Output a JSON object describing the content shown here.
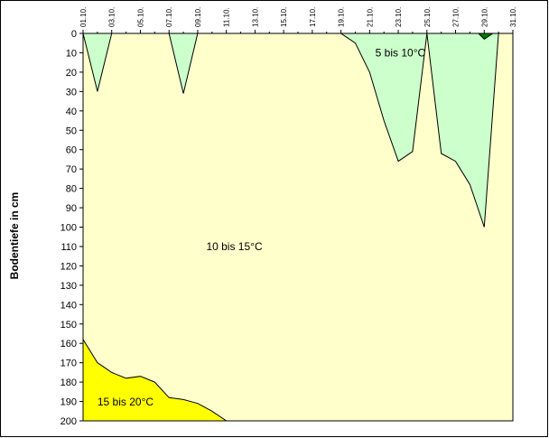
{
  "chart_data": {
    "type": "area",
    "title": "",
    "xlabel": "",
    "ylabel": "Bodentiefe in cm",
    "x_tick_labels": [
      "01.10.",
      "03.10.",
      "05.10.",
      "07.10.",
      "09.10.",
      "11.10.",
      "13.10.",
      "15.10.",
      "17.10.",
      "19.10.",
      "21.10.",
      "23.10.",
      "25.10.",
      "27.10.",
      "29.10.",
      "31.10."
    ],
    "xlim_day": [
      1,
      31
    ],
    "y_ticks": [
      0,
      10,
      20,
      30,
      40,
      50,
      60,
      70,
      80,
      90,
      100,
      110,
      120,
      130,
      140,
      150,
      160,
      170,
      180,
      190,
      200
    ],
    "ylim": [
      0,
      200
    ],
    "y_inverted": true,
    "grid": false,
    "colors": {
      "background_band": "#ffffcc",
      "cool_band": "#ccffcc",
      "cold_band": "#008000",
      "warm_band": "#ffff00",
      "outline": "#000000"
    },
    "series": [
      {
        "name": "5 bis 10°C",
        "fill": "cool_band",
        "regions": [
          [
            {
              "day": 1,
              "depth": 0
            },
            {
              "day": 2,
              "depth": 30
            },
            {
              "day": 3,
              "depth": 0
            }
          ],
          [
            {
              "day": 7,
              "depth": 0
            },
            {
              "day": 8,
              "depth": 31
            },
            {
              "day": 9,
              "depth": 0
            }
          ],
          [
            {
              "day": 19,
              "depth": 0
            },
            {
              "day": 20,
              "depth": 5
            },
            {
              "day": 21,
              "depth": 20
            },
            {
              "day": 22,
              "depth": 45
            },
            {
              "day": 23,
              "depth": 66
            },
            {
              "day": 24,
              "depth": 61
            },
            {
              "day": 25,
              "depth": 0
            }
          ],
          [
            {
              "day": 25,
              "depth": 0
            },
            {
              "day": 26,
              "depth": 62
            },
            {
              "day": 27,
              "depth": 66
            },
            {
              "day": 28,
              "depth": 78
            },
            {
              "day": 29,
              "depth": 100
            },
            {
              "day": 30,
              "depth": 0
            }
          ]
        ]
      },
      {
        "name": "",
        "fill": "cold_band",
        "regions": [
          [
            {
              "day": 28.6,
              "depth": 0
            },
            {
              "day": 29,
              "depth": 3
            },
            {
              "day": 29.6,
              "depth": 0
            }
          ]
        ]
      },
      {
        "name": "10 bis 15°C",
        "fill": "background_band",
        "regions": []
      },
      {
        "name": "15 bis 20°C",
        "fill": "warm_band",
        "regions": [
          [
            {
              "day": 1,
              "depth": 158
            },
            {
              "day": 2,
              "depth": 170
            },
            {
              "day": 3,
              "depth": 175
            },
            {
              "day": 4,
              "depth": 178
            },
            {
              "day": 5,
              "depth": 177
            },
            {
              "day": 6,
              "depth": 180
            },
            {
              "day": 7,
              "depth": 188
            },
            {
              "day": 8,
              "depth": 189
            },
            {
              "day": 9,
              "depth": 191
            },
            {
              "day": 10,
              "depth": 195
            },
            {
              "day": 11,
              "depth": 200
            },
            {
              "day": 1,
              "depth": 200
            }
          ]
        ]
      }
    ],
    "annotations": [
      {
        "text": "5 bis 10°C",
        "day": 21.4,
        "depth": 12
      },
      {
        "text": "10 bis 15°C",
        "day": 9.6,
        "depth": 112
      },
      {
        "text": "15 bis 20°C",
        "day": 2.0,
        "depth": 192
      }
    ]
  }
}
